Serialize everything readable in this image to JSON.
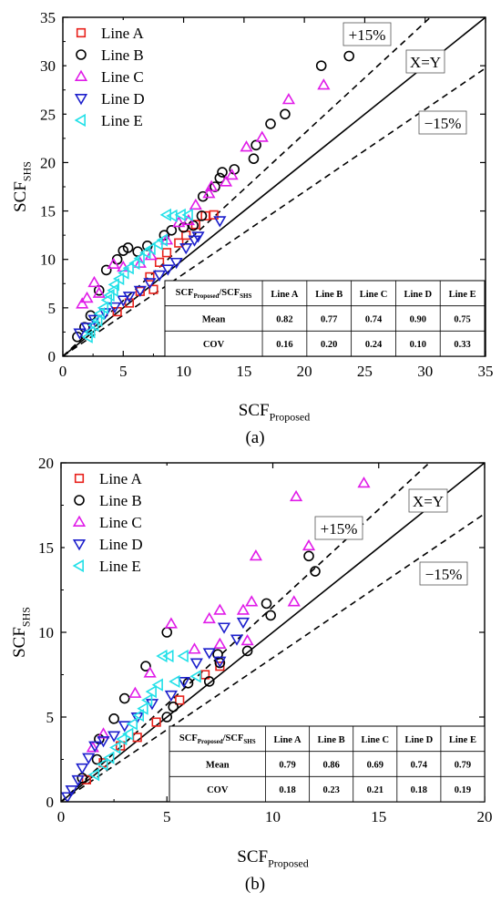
{
  "chart_data": [
    {
      "panel": "(a)",
      "type": "scatter",
      "xlim": [
        0,
        35
      ],
      "ylim": [
        0,
        35
      ],
      "xticks": [
        0,
        5,
        10,
        15,
        20,
        25,
        30,
        35
      ],
      "yticks": [
        0,
        5,
        10,
        15,
        20,
        25,
        30,
        35
      ],
      "xlabel": {
        "main": "SCF",
        "sub": "Proposed"
      },
      "ylabel": {
        "main": "SCF",
        "sub": "SHS"
      },
      "reference_lines": [
        {
          "label": "X=Y",
          "slope": 1.0,
          "style": "solid"
        },
        {
          "label": "+15%",
          "slope": 1.15,
          "style": "dashed"
        },
        {
          "label": "−15%",
          "slope": 0.85,
          "style": "dashed"
        }
      ],
      "legend_position": "top-left",
      "series": [
        {
          "name": "Line A",
          "marker": "square",
          "color": "#e8211b",
          "points": [
            [
              4.5,
              4.6
            ],
            [
              5.5,
              5.5
            ],
            [
              6.4,
              6.7
            ],
            [
              7.5,
              6.9
            ],
            [
              7.2,
              8.2
            ],
            [
              8.0,
              9.7
            ],
            [
              8.6,
              10.7
            ],
            [
              9.6,
              11.7
            ],
            [
              10.2,
              12.5
            ],
            [
              11.0,
              13.6
            ],
            [
              11.8,
              14.5
            ],
            [
              12.5,
              14.6
            ]
          ]
        },
        {
          "name": "Line B",
          "marker": "circle",
          "color": "#000000",
          "points": [
            [
              1.2,
              2.0
            ],
            [
              1.8,
              3.0
            ],
            [
              2.3,
              4.2
            ],
            [
              3.0,
              6.8
            ],
            [
              3.6,
              8.9
            ],
            [
              4.5,
              10.0
            ],
            [
              5.0,
              10.9
            ],
            [
              5.4,
              11.2
            ],
            [
              6.2,
              10.8
            ],
            [
              7.0,
              11.4
            ],
            [
              8.4,
              12.5
            ],
            [
              9.0,
              13.0
            ],
            [
              10.0,
              13.3
            ],
            [
              10.8,
              13.5
            ],
            [
              11.5,
              14.5
            ],
            [
              11.6,
              16.5
            ],
            [
              12.6,
              17.5
            ],
            [
              13.0,
              18.4
            ],
            [
              13.2,
              19.0
            ],
            [
              14.2,
              19.3
            ],
            [
              15.8,
              20.4
            ],
            [
              16.0,
              21.8
            ],
            [
              17.2,
              24.0
            ],
            [
              18.4,
              25.0
            ],
            [
              21.4,
              30.0
            ],
            [
              23.7,
              31.0
            ]
          ]
        },
        {
          "name": "Line C",
          "marker": "triangle-up",
          "color": "#e01be8",
          "points": [
            [
              1.6,
              5.4
            ],
            [
              2.0,
              6.0
            ],
            [
              2.6,
              7.6
            ],
            [
              3.0,
              6.5
            ],
            [
              4.2,
              9.5
            ],
            [
              5.0,
              9.2
            ],
            [
              6.4,
              9.6
            ],
            [
              7.3,
              10.4
            ],
            [
              8.6,
              12.0
            ],
            [
              9.6,
              13.8
            ],
            [
              10.4,
              14.0
            ],
            [
              11.0,
              15.6
            ],
            [
              12.1,
              16.8
            ],
            [
              12.3,
              17.5
            ],
            [
              13.5,
              18.0
            ],
            [
              14.0,
              18.7
            ],
            [
              15.2,
              21.6
            ],
            [
              16.5,
              22.6
            ],
            [
              18.7,
              26.5
            ],
            [
              21.6,
              28.0
            ]
          ]
        },
        {
          "name": "Line D",
          "marker": "triangle-down",
          "color": "#1c1fcc",
          "points": [
            [
              1.4,
              2.4
            ],
            [
              2.0,
              3.0
            ],
            [
              2.6,
              3.8
            ],
            [
              3.5,
              4.5
            ],
            [
              4.3,
              5.1
            ],
            [
              5.0,
              5.8
            ],
            [
              5.5,
              6.2
            ],
            [
              6.4,
              6.8
            ],
            [
              7.2,
              7.6
            ],
            [
              8.0,
              8.4
            ],
            [
              8.7,
              9.0
            ],
            [
              9.4,
              9.7
            ],
            [
              10.2,
              11.2
            ],
            [
              10.9,
              12.0
            ],
            [
              11.2,
              12.4
            ],
            [
              13.0,
              14.0
            ]
          ]
        },
        {
          "name": "Line E",
          "marker": "triangle-left",
          "color": "#22e0e8",
          "points": [
            [
              2.1,
              2.0
            ],
            [
              2.3,
              2.5
            ],
            [
              2.6,
              3.2
            ],
            [
              2.9,
              3.7
            ],
            [
              3.1,
              4.4
            ],
            [
              3.4,
              5.0
            ],
            [
              3.7,
              5.8
            ],
            [
              3.9,
              6.3
            ],
            [
              4.2,
              6.8
            ],
            [
              4.3,
              7.4
            ],
            [
              4.7,
              8.0
            ],
            [
              5.1,
              8.6
            ],
            [
              5.5,
              9.1
            ],
            [
              6.0,
              9.6
            ],
            [
              6.4,
              10.1
            ],
            [
              6.9,
              10.7
            ],
            [
              7.3,
              11.1
            ],
            [
              7.9,
              11.6
            ],
            [
              8.3,
              12.0
            ],
            [
              8.6,
              14.6
            ],
            [
              9.1,
              14.5
            ],
            [
              9.8,
              14.6
            ],
            [
              10.4,
              14.6
            ]
          ]
        }
      ],
      "table": {
        "header_main": "SCF",
        "header_sub1": "Proposed",
        "header_mid": "/SCF",
        "header_sub2": "SHS",
        "columns": [
          "Line A",
          "Line B",
          "Line C",
          "Line D",
          "Line E"
        ],
        "rows": [
          {
            "label": "Mean",
            "values": [
              "0.82",
              "0.77",
              "0.74",
              "0.90",
              "0.75"
            ]
          },
          {
            "label": "COV",
            "values": [
              "0.16",
              "0.20",
              "0.24",
              "0.10",
              "0.33"
            ]
          }
        ]
      }
    },
    {
      "panel": "(b)",
      "type": "scatter",
      "xlim": [
        0,
        20
      ],
      "ylim": [
        0,
        20
      ],
      "xticks": [
        0,
        5,
        10,
        15,
        20
      ],
      "yticks": [
        0,
        5,
        10,
        15,
        20
      ],
      "xlabel": {
        "main": "SCF",
        "sub": "Proposed"
      },
      "ylabel": {
        "main": "SCF",
        "sub": "SHS"
      },
      "reference_lines": [
        {
          "label": "X=Y",
          "slope": 1.0,
          "style": "solid"
        },
        {
          "label": "+15%",
          "slope": 1.15,
          "style": "dashed"
        },
        {
          "label": "−15%",
          "slope": 0.85,
          "style": "dashed"
        }
      ],
      "legend_position": "top-left",
      "series": [
        {
          "name": "Line A",
          "marker": "square",
          "color": "#e8211b",
          "points": [
            [
              1.2,
              1.3
            ],
            [
              2.0,
              2.3
            ],
            [
              2.8,
              3.3
            ],
            [
              3.6,
              3.8
            ],
            [
              4.5,
              4.7
            ],
            [
              5.6,
              6.0
            ],
            [
              6.8,
              7.5
            ],
            [
              7.5,
              8.0
            ]
          ]
        },
        {
          "name": "Line B",
          "marker": "circle",
          "color": "#000000",
          "points": [
            [
              1.0,
              1.4
            ],
            [
              1.7,
              2.5
            ],
            [
              1.8,
              3.7
            ],
            [
              2.5,
              4.9
            ],
            [
              3.0,
              6.1
            ],
            [
              4.0,
              8.0
            ],
            [
              5.0,
              5.0
            ],
            [
              5.3,
              5.6
            ],
            [
              5.0,
              10.0
            ],
            [
              6.0,
              7.0
            ],
            [
              7.0,
              7.1
            ],
            [
              7.5,
              8.2
            ],
            [
              7.4,
              8.7
            ],
            [
              8.8,
              8.9
            ],
            [
              9.7,
              11.7
            ],
            [
              9.9,
              11.0
            ],
            [
              11.7,
              14.5
            ],
            [
              12.0,
              13.6
            ]
          ]
        },
        {
          "name": "Line C",
          "marker": "triangle-up",
          "color": "#e01be8",
          "points": [
            [
              1.5,
              3.2
            ],
            [
              2.0,
              4.0
            ],
            [
              3.5,
              6.4
            ],
            [
              4.2,
              7.6
            ],
            [
              5.2,
              10.5
            ],
            [
              6.3,
              9.0
            ],
            [
              7.0,
              10.8
            ],
            [
              7.5,
              11.3
            ],
            [
              7.5,
              9.3
            ],
            [
              8.6,
              11.3
            ],
            [
              8.8,
              9.5
            ],
            [
              9.0,
              11.8
            ],
            [
              9.2,
              14.5
            ],
            [
              11.0,
              11.8
            ],
            [
              11.1,
              18.0
            ],
            [
              11.7,
              15.1
            ],
            [
              14.3,
              18.8
            ]
          ]
        },
        {
          "name": "Line D",
          "marker": "triangle-down",
          "color": "#1c1fcc",
          "points": [
            [
              0.3,
              0.3
            ],
            [
              0.5,
              0.7
            ],
            [
              0.8,
              1.3
            ],
            [
              1.0,
              2.0
            ],
            [
              1.3,
              2.6
            ],
            [
              1.6,
              3.3
            ],
            [
              2.0,
              3.6
            ],
            [
              2.5,
              3.9
            ],
            [
              3.0,
              4.5
            ],
            [
              3.6,
              5.0
            ],
            [
              4.3,
              5.8
            ],
            [
              5.2,
              6.3
            ],
            [
              5.8,
              7.1
            ],
            [
              6.4,
              8.2
            ],
            [
              7.0,
              8.8
            ],
            [
              7.5,
              8.3
            ],
            [
              7.7,
              10.3
            ],
            [
              8.3,
              9.6
            ],
            [
              8.6,
              10.6
            ]
          ]
        },
        {
          "name": "Line E",
          "marker": "triangle-left",
          "color": "#22e0e8",
          "points": [
            [
              1.6,
              1.6
            ],
            [
              2.0,
              2.2
            ],
            [
              2.3,
              2.6
            ],
            [
              2.6,
              3.2
            ],
            [
              2.9,
              3.7
            ],
            [
              3.2,
              4.0
            ],
            [
              3.4,
              4.6
            ],
            [
              3.7,
              5.1
            ],
            [
              3.9,
              5.5
            ],
            [
              4.1,
              6.0
            ],
            [
              4.3,
              6.5
            ],
            [
              4.6,
              6.9
            ],
            [
              4.8,
              8.6
            ],
            [
              5.1,
              8.6
            ],
            [
              5.4,
              7.1
            ],
            [
              5.8,
              8.6
            ],
            [
              6.4,
              7.4
            ]
          ]
        }
      ],
      "table": {
        "header_main": "SCF",
        "header_sub1": "Proposed",
        "header_mid": "/SCF",
        "header_sub2": "SHS",
        "columns": [
          "Line A",
          "Line B",
          "Line C",
          "Line D",
          "Line E"
        ],
        "rows": [
          {
            "label": "Mean",
            "values": [
              "0.79",
              "0.86",
              "0.69",
              "0.74",
              "0.79"
            ]
          },
          {
            "label": "COV",
            "values": [
              "0.18",
              "0.23",
              "0.21",
              "0.18",
              "0.19"
            ]
          }
        ]
      }
    }
  ]
}
